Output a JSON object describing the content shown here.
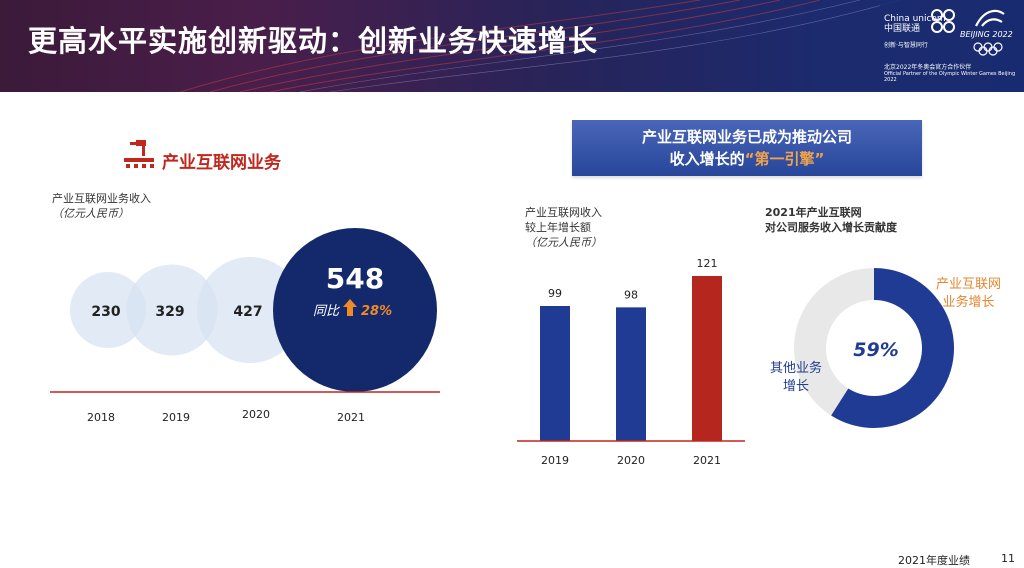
{
  "header": {
    "title": "更高水平实施创新驱动：创新业务快速增长",
    "logo_text": "China unicom中国联通",
    "logo_sub": "创新·与智慧同行",
    "games_text": "BEIJING 2022",
    "partner_cn": "北京2022年冬奥会官方合作伙伴",
    "partner_en": "Official Partner of the Olympic Winter Games Beijing 2022"
  },
  "left": {
    "section_title": "产业互联网业务",
    "metric_label": "产业互联网业务收入",
    "metric_unit": "（亿元人民币）"
  },
  "banner": {
    "line1": "产业互联网业务已成为推动公司",
    "line2_prefix": "收入增长的",
    "line2_highlight": "“第一引擎”"
  },
  "middle": {
    "label_line1": "产业互联网收入",
    "label_line2": "较上年增长额",
    "label_unit": "（亿元人民币）"
  },
  "right": {
    "label_line1": "2021年产业互联网",
    "label_line2": "对公司服务收入增长贡献度",
    "donut_label_main_1": "产业互联网",
    "donut_label_main_2": "业务增长",
    "donut_label_other_1": "其他业务",
    "donut_label_other_2": "增长"
  },
  "chart_data": [
    {
      "type": "bubble",
      "categories": [
        "2018",
        "2019",
        "2020",
        "2021"
      ],
      "values": [
        230,
        329,
        427,
        548
      ],
      "highlight_label": "同比",
      "highlight_growth": "28%",
      "colors": {
        "past": "#d7e3f1",
        "current": "#14296b",
        "growth": "#f08a24"
      }
    },
    {
      "type": "bar",
      "categories": [
        "2019",
        "2020",
        "2021"
      ],
      "values": [
        99,
        98,
        121
      ],
      "colors": [
        "#1f3b93",
        "#1f3b93",
        "#b5261e"
      ],
      "ylim": [
        0,
        140
      ]
    },
    {
      "type": "pie",
      "labels": [
        "产业互联网业务增长",
        "其他业务增长"
      ],
      "values": [
        59,
        41
      ],
      "center_label": "59%",
      "colors": [
        "#1f3b93",
        "#e8e8e8"
      ]
    }
  ],
  "footer": {
    "text": "2021年度业绩",
    "page": "11"
  }
}
